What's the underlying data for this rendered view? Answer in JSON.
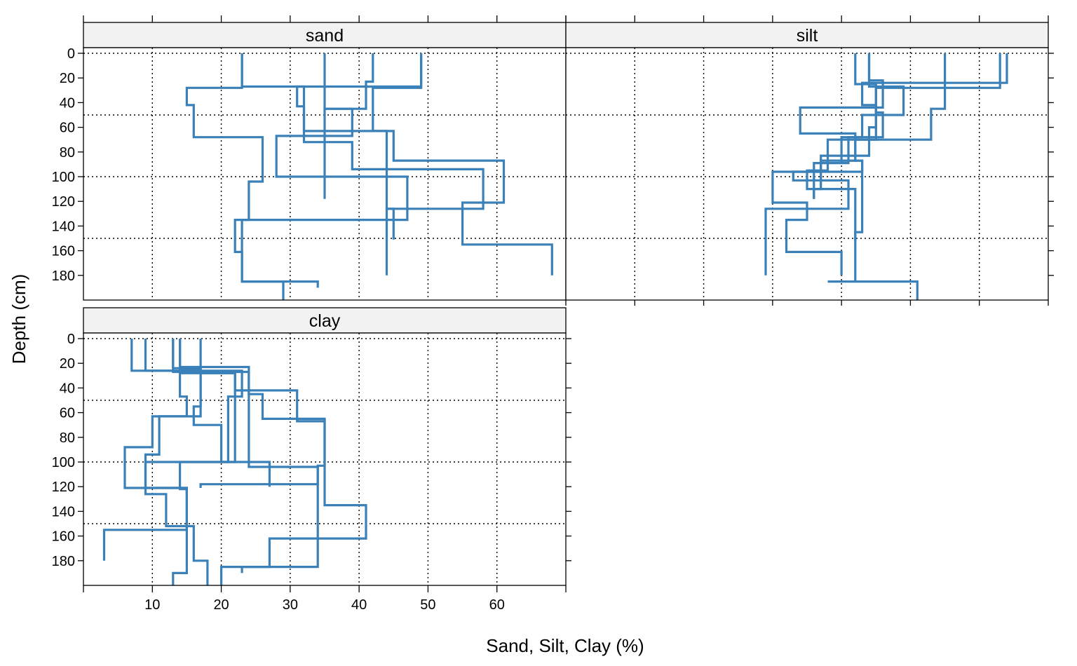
{
  "chart_data": {
    "type": "line",
    "panels": [
      "sand",
      "silt",
      "clay"
    ],
    "xlabel": "Sand, Silt, Clay (%)",
    "ylabel": "Depth (cm)",
    "xlim": [
      0,
      70
    ],
    "ylim": [
      200,
      0
    ],
    "x_ticks": [
      10,
      20,
      30,
      40,
      50,
      60
    ],
    "y_ticks": [
      0,
      20,
      40,
      60,
      80,
      100,
      120,
      140,
      160,
      180
    ],
    "x_gridlines": [
      10,
      20,
      30,
      40,
      50,
      60
    ],
    "y_gridlines": [
      0,
      50,
      100,
      150
    ],
    "grid": "dotted",
    "line_color": "#3a80b9",
    "strip_color": "#f2f2f2",
    "series": {
      "sand": [
        [
          [
            0,
            23
          ],
          [
            28,
            23
          ],
          [
            28,
            15
          ],
          [
            42,
            15
          ],
          [
            42,
            16
          ],
          [
            68,
            16
          ],
          [
            68,
            26
          ],
          [
            104,
            26
          ],
          [
            104,
            24
          ],
          [
            135,
            24
          ],
          [
            135,
            22
          ],
          [
            161,
            22
          ],
          [
            161,
            23
          ],
          [
            185,
            23
          ],
          [
            185,
            34
          ],
          [
            190,
            34
          ]
        ],
        [
          [
            0,
            35
          ],
          [
            45,
            35
          ],
          [
            45,
            39
          ],
          [
            67,
            39
          ],
          [
            67,
            28
          ],
          [
            100,
            28
          ],
          [
            100,
            47
          ],
          [
            135,
            47
          ],
          [
            135,
            23
          ],
          [
            185,
            23
          ],
          [
            185,
            29
          ],
          [
            200,
            29
          ]
        ],
        [
          [
            0,
            42
          ],
          [
            23,
            42
          ],
          [
            23,
            41
          ],
          [
            45,
            41
          ],
          [
            45,
            35
          ],
          [
            118,
            35
          ]
        ],
        [
          [
            0,
            49
          ],
          [
            27,
            49
          ],
          [
            27,
            31
          ],
          [
            43,
            31
          ],
          [
            43,
            32
          ],
          [
            63,
            32
          ],
          [
            63,
            45
          ],
          [
            87,
            45
          ],
          [
            87,
            61
          ],
          [
            121,
            61
          ],
          [
            121,
            55
          ],
          [
            155,
            55
          ],
          [
            155,
            68
          ],
          [
            180,
            68
          ]
        ],
        [
          [
            0,
            49
          ],
          [
            28,
            49
          ],
          [
            28,
            42
          ],
          [
            63,
            42
          ],
          [
            63,
            44
          ],
          [
            126,
            44
          ],
          [
            126,
            45
          ],
          [
            151,
            45
          ]
        ],
        [
          [
            0,
            23
          ],
          [
            27,
            23
          ],
          [
            27,
            32
          ],
          [
            72,
            32
          ],
          [
            72,
            39
          ],
          [
            94,
            39
          ],
          [
            94,
            58
          ],
          [
            126,
            58
          ],
          [
            126,
            44
          ],
          [
            180,
            44
          ]
        ]
      ],
      "silt": [
        [
          [
            0,
            42
          ],
          [
            25,
            42
          ],
          [
            25,
            45
          ],
          [
            60,
            45
          ],
          [
            60,
            44
          ],
          [
            83,
            44
          ],
          [
            83,
            37
          ],
          [
            96,
            37
          ],
          [
            96,
            30
          ],
          [
            121,
            30
          ],
          [
            121,
            35
          ],
          [
            135,
            35
          ],
          [
            135,
            32
          ],
          [
            161,
            32
          ],
          [
            161,
            40
          ],
          [
            180,
            40
          ]
        ],
        [
          [
            0,
            44
          ],
          [
            22,
            44
          ],
          [
            22,
            46
          ],
          [
            44,
            46
          ],
          [
            44,
            34
          ],
          [
            65,
            34
          ],
          [
            65,
            42
          ],
          [
            87,
            42
          ],
          [
            87,
            43
          ],
          [
            96,
            43
          ],
          [
            96,
            33
          ],
          [
            103,
            33
          ],
          [
            103,
            41
          ],
          [
            126,
            41
          ],
          [
            126,
            29
          ],
          [
            155,
            29
          ],
          [
            155,
            29
          ],
          [
            180,
            29
          ]
        ],
        [
          [
            0,
            55
          ],
          [
            28,
            55
          ],
          [
            28,
            45
          ],
          [
            48,
            45
          ],
          [
            48,
            46
          ],
          [
            68,
            46
          ],
          [
            68,
            41
          ],
          [
            89,
            41
          ],
          [
            89,
            36
          ],
          [
            105,
            36
          ],
          [
            105,
            36
          ],
          [
            118,
            36
          ]
        ],
        [
          [
            0,
            64
          ],
          [
            24,
            64
          ],
          [
            24,
            43
          ],
          [
            42,
            43
          ],
          [
            42,
            45
          ],
          [
            70,
            45
          ],
          [
            70,
            38
          ],
          [
            95,
            38
          ],
          [
            95,
            35
          ],
          [
            110,
            35
          ],
          [
            110,
            42
          ],
          [
            135,
            42
          ],
          [
            135,
            42
          ],
          [
            185,
            42
          ],
          [
            185,
            38
          ],
          [
            185,
            51
          ],
          [
            200,
            51
          ]
        ],
        [
          [
            0,
            44
          ],
          [
            27,
            44
          ],
          [
            27,
            49
          ],
          [
            50,
            49
          ],
          [
            50,
            43
          ],
          [
            68,
            43
          ],
          [
            68,
            40
          ],
          [
            87,
            40
          ],
          [
            87,
            43
          ],
          [
            112,
            43
          ],
          [
            112,
            43
          ],
          [
            145,
            43
          ],
          [
            145,
            42
          ],
          [
            152,
            42
          ]
        ],
        [
          [
            0,
            63
          ],
          [
            28,
            63
          ],
          [
            28,
            55
          ],
          [
            45,
            55
          ],
          [
            45,
            53
          ],
          [
            70,
            53
          ],
          [
            70,
            42
          ],
          [
            87,
            42
          ],
          [
            87,
            37
          ],
          [
            110,
            37
          ],
          [
            110,
            36
          ],
          [
            118,
            36
          ]
        ]
      ],
      "clay": [
        [
          [
            0,
            7
          ],
          [
            26,
            7
          ],
          [
            26,
            14
          ],
          [
            47,
            14
          ],
          [
            47,
            15
          ],
          [
            63,
            15
          ],
          [
            63,
            11
          ],
          [
            94,
            11
          ],
          [
            94,
            9
          ],
          [
            126,
            9
          ],
          [
            126,
            12
          ],
          [
            152,
            12
          ],
          [
            152,
            16
          ],
          [
            180,
            16
          ],
          [
            180,
            18
          ],
          [
            200,
            18
          ]
        ],
        [
          [
            0,
            9
          ],
          [
            26,
            9
          ],
          [
            26,
            23
          ],
          [
            47,
            23
          ],
          [
            47,
            21
          ],
          [
            100,
            21
          ],
          [
            100,
            9
          ],
          [
            121,
            9
          ],
          [
            121,
            15
          ],
          [
            190,
            15
          ],
          [
            190,
            13
          ],
          [
            200,
            13
          ]
        ],
        [
          [
            0,
            13
          ],
          [
            24,
            13
          ],
          [
            24,
            17
          ],
          [
            63,
            17
          ],
          [
            63,
            10
          ],
          [
            88,
            10
          ],
          [
            88,
            6
          ],
          [
            121,
            6
          ],
          [
            121,
            15
          ],
          [
            126,
            15
          ]
        ],
        [
          [
            0,
            17
          ],
          [
            28,
            17
          ],
          [
            28,
            22
          ],
          [
            42,
            22
          ],
          [
            42,
            31
          ],
          [
            67,
            31
          ],
          [
            67,
            35
          ],
          [
            135,
            35
          ],
          [
            135,
            41
          ],
          [
            162,
            41
          ],
          [
            162,
            27
          ],
          [
            185,
            27
          ],
          [
            185,
            23
          ],
          [
            190,
            23
          ]
        ],
        [
          [
            0,
            14
          ],
          [
            23,
            14
          ],
          [
            23,
            24
          ],
          [
            45,
            24
          ],
          [
            45,
            26
          ],
          [
            65,
            26
          ],
          [
            65,
            35
          ],
          [
            103,
            35
          ],
          [
            103,
            34
          ],
          [
            185,
            34
          ],
          [
            185,
            20
          ],
          [
            200,
            20
          ]
        ],
        [
          [
            0,
            13
          ],
          [
            27,
            13
          ],
          [
            27,
            24
          ],
          [
            104,
            24
          ],
          [
            104,
            34
          ],
          [
            118,
            34
          ],
          [
            118,
            17
          ],
          [
            121,
            17
          ]
        ],
        [
          [
            0,
            14
          ],
          [
            25,
            14
          ],
          [
            25,
            17
          ],
          [
            55,
            17
          ],
          [
            55,
            16
          ],
          [
            70,
            16
          ],
          [
            70,
            20
          ],
          [
            100,
            20
          ],
          [
            100,
            27
          ],
          [
            120,
            27
          ]
        ],
        [
          [
            0,
            14
          ],
          [
            28,
            14
          ],
          [
            28,
            22
          ],
          [
            100,
            22
          ],
          [
            100,
            14
          ],
          [
            122,
            14
          ],
          [
            122,
            15
          ],
          [
            155,
            15
          ],
          [
            155,
            3
          ],
          [
            180,
            3
          ]
        ]
      ]
    }
  }
}
